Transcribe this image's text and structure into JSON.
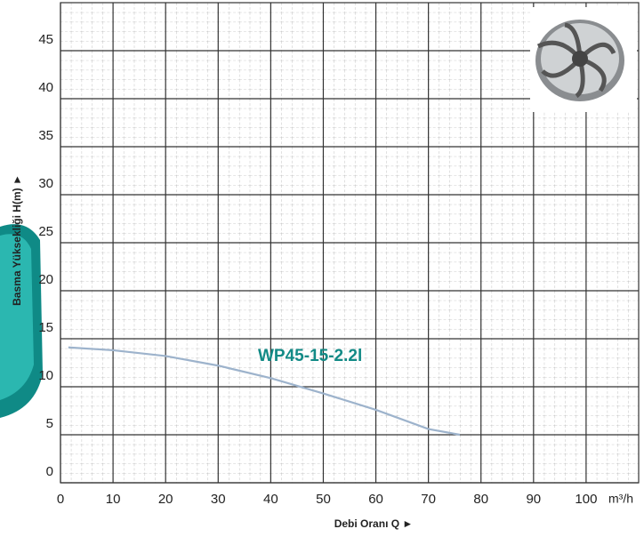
{
  "chart_data": {
    "type": "line",
    "x_label": "Debi Oranı Q ►",
    "y_label": "Basma Yüksekliği H(m) ►",
    "x_unit": "m³/h",
    "annotation": "WP45-15-2.2l",
    "xlim": [
      0,
      110
    ],
    "xticks": [
      0,
      10,
      20,
      30,
      40,
      50,
      60,
      70,
      80,
      90,
      100
    ],
    "ylim": [
      0,
      50
    ],
    "yticks": [
      0,
      5,
      10,
      15,
      20,
      25,
      30,
      35,
      40,
      45
    ],
    "grid": true,
    "series": [
      {
        "color": "#9db3cc",
        "x": [
          1.5,
          10,
          20,
          30,
          40,
          50,
          60,
          70,
          76
        ],
        "values": [
          14.1,
          13.8,
          13.2,
          12.2,
          10.9,
          9.3,
          7.6,
          5.6,
          5.0
        ]
      }
    ]
  }
}
